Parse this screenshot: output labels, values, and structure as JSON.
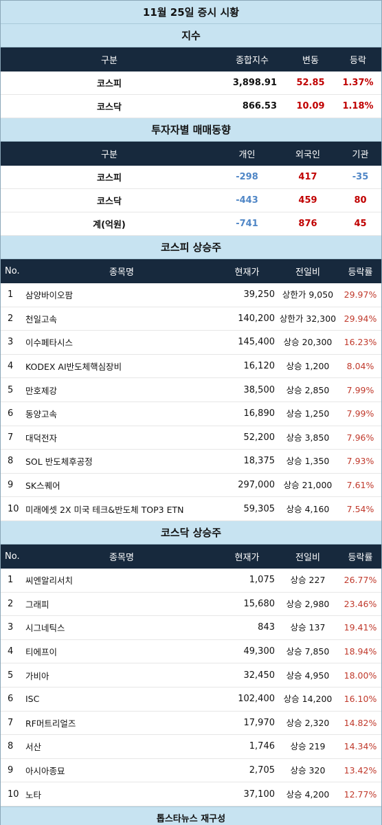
{
  "title": "11월 25일 증시 시황",
  "index": {
    "title": "지수",
    "headers": [
      "구분",
      "종합지수",
      "변동",
      "등락"
    ],
    "rows": [
      {
        "name": "코스피",
        "value": "3,898.91",
        "change": "52.85",
        "rate": "1.37%"
      },
      {
        "name": "코스닥",
        "value": "866.53",
        "change": "10.09",
        "rate": "1.18%"
      }
    ]
  },
  "investor": {
    "title": "투자자별 매매동향",
    "headers": [
      "구분",
      "개인",
      "외국인",
      "기관"
    ],
    "rows": [
      {
        "name": "코스피",
        "individual": "-298",
        "foreign": "417",
        "institution": "-35"
      },
      {
        "name": "코스닥",
        "individual": "-443",
        "foreign": "459",
        "institution": "80"
      },
      {
        "name": "계(억원)",
        "individual": "-741",
        "foreign": "876",
        "institution": "45"
      }
    ]
  },
  "kospi": {
    "title": "코스피 상승주",
    "headers": [
      "No.",
      "종목명",
      "현재가",
      "전일비",
      "등락률"
    ],
    "rows": [
      {
        "no": "1",
        "name": "삼양바이오팜",
        "price": "39,250",
        "change": "상한가 9,050",
        "rate": "29.97%"
      },
      {
        "no": "2",
        "name": "천일고속",
        "price": "140,200",
        "change": "상한가 32,300",
        "rate": "29.94%"
      },
      {
        "no": "3",
        "name": "이수페타시스",
        "price": "145,400",
        "change": "상승 20,300",
        "rate": "16.23%"
      },
      {
        "no": "4",
        "name": "KODEX AI반도체핵심장비",
        "price": "16,120",
        "change": "상승 1,200",
        "rate": "8.04%"
      },
      {
        "no": "5",
        "name": "만호제강",
        "price": "38,500",
        "change": "상승 2,850",
        "rate": "7.99%"
      },
      {
        "no": "6",
        "name": "동양고속",
        "price": "16,890",
        "change": "상승 1,250",
        "rate": "7.99%"
      },
      {
        "no": "7",
        "name": "대덕전자",
        "price": "52,200",
        "change": "상승 3,850",
        "rate": "7.96%"
      },
      {
        "no": "8",
        "name": "SOL 반도체후공정",
        "price": "18,375",
        "change": "상승 1,350",
        "rate": "7.93%"
      },
      {
        "no": "9",
        "name": "SK스퀘어",
        "price": "297,000",
        "change": "상승 21,000",
        "rate": "7.61%"
      },
      {
        "no": "10",
        "name": "미래에셋 2X 미국 테크&반도체 TOP3 ETN",
        "price": "59,305",
        "change": "상승 4,160",
        "rate": "7.54%"
      }
    ]
  },
  "kosdaq": {
    "title": "코스닥 상승주",
    "headers": [
      "No.",
      "종목명",
      "현재가",
      "전일비",
      "등락률"
    ],
    "rows": [
      {
        "no": "1",
        "name": "씨엔알리서치",
        "price": "1,075",
        "change": "상승 227",
        "rate": "26.77%"
      },
      {
        "no": "2",
        "name": "그래피",
        "price": "15,680",
        "change": "상승 2,980",
        "rate": "23.46%"
      },
      {
        "no": "3",
        "name": "시그네틱스",
        "price": "843",
        "change": "상승 137",
        "rate": "19.41%"
      },
      {
        "no": "4",
        "name": "티에프이",
        "price": "49,300",
        "change": "상승 7,850",
        "rate": "18.94%"
      },
      {
        "no": "5",
        "name": "가비아",
        "price": "32,450",
        "change": "상승 4,950",
        "rate": "18.00%"
      },
      {
        "no": "6",
        "name": "ISC",
        "price": "102,400",
        "change": "상승 14,200",
        "rate": "16.10%"
      },
      {
        "no": "7",
        "name": "RF머트리얼즈",
        "price": "17,970",
        "change": "상승 2,320",
        "rate": "14.82%"
      },
      {
        "no": "8",
        "name": "서산",
        "price": "1,746",
        "change": "상승 219",
        "rate": "14.34%"
      },
      {
        "no": "9",
        "name": "아시아종묘",
        "price": "2,705",
        "change": "상승 320",
        "rate": "13.42%"
      },
      {
        "no": "10",
        "name": "노타",
        "price": "37,100",
        "change": "상승 4,200",
        "rate": "12.77%"
      }
    ]
  },
  "footer": "톱스타뉴스 재구성",
  "colors": {
    "band": "#c7e3f1",
    "header": "#17293d",
    "up": "#c00000",
    "down": "#4f86c6"
  }
}
